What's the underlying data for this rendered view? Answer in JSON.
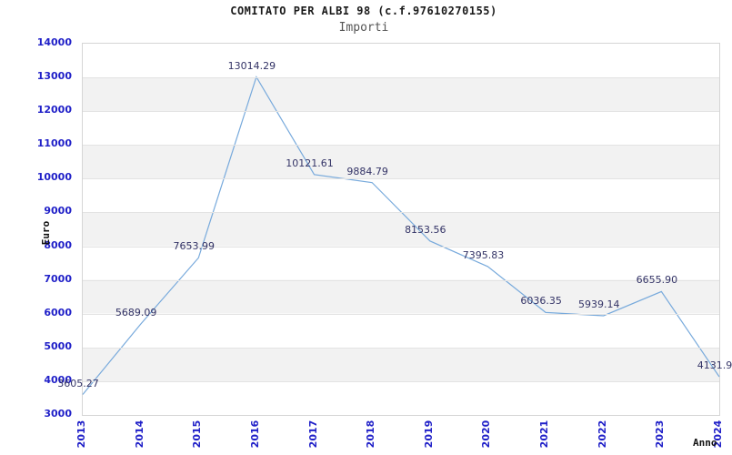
{
  "header": {
    "title": "COMITATO PER ALBI 98 (c.f.97610270155)",
    "subtitle": "Importi"
  },
  "chart_data": {
    "type": "line",
    "title": "COMITATO PER ALBI 98 (c.f.97610270155)",
    "subtitle": "Importi",
    "xlabel": "Anno",
    "ylabel": "Euro",
    "categories": [
      "2013",
      "2014",
      "2015",
      "2016",
      "2017",
      "2018",
      "2019",
      "2020",
      "2021",
      "2022",
      "2023",
      "2024"
    ],
    "values": [
      3605.27,
      5689.09,
      7653.99,
      13014.29,
      10121.61,
      9884.79,
      8153.56,
      7395.83,
      6036.35,
      5939.14,
      6655.9,
      4131.9
    ],
    "point_labels": [
      "3605.27",
      "5689.09",
      "7653.99",
      "13014.29",
      "10121.61",
      "9884.79",
      "8153.56",
      "7395.83",
      "6036.35",
      "5939.14",
      "6655.90",
      "4131.9"
    ],
    "ylim": [
      3000,
      14000
    ],
    "yticks": [
      3000,
      4000,
      5000,
      6000,
      7000,
      8000,
      9000,
      10000,
      11000,
      12000,
      13000,
      14000
    ],
    "grid": "horizontal-bands",
    "legend": "none",
    "colors": {
      "line": "#78aadc",
      "tick_label": "#2020c8",
      "point_label": "#333366",
      "band": "#f2f2f2",
      "gridline": "#e3e3e3",
      "plot_border": "#d5d5d5",
      "title": "#1a1a1a",
      "subtitle": "#555555"
    }
  }
}
